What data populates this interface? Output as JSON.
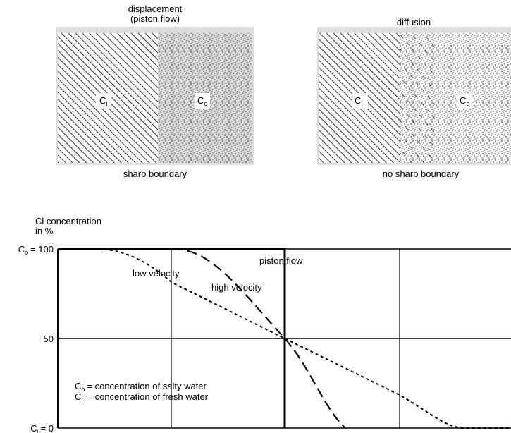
{
  "panels": [
    {
      "title_lines": [
        "displacement",
        "(piston flow)"
      ],
      "left_symbol": "C",
      "left_sub": "i",
      "right_symbol": "C",
      "right_sub": "o",
      "caption": "sharp boundary"
    },
    {
      "title_lines": [
        "diffusion"
      ],
      "left_symbol": "C",
      "left_sub": "i",
      "right_symbol": "C",
      "right_sub": "o",
      "caption": "no sharp boundary"
    }
  ],
  "chart": {
    "y_label_lines": [
      "Cl concentration",
      "in %"
    ],
    "ylim": [
      0,
      100
    ],
    "yticks": [
      {
        "value": 100,
        "symbol": "C",
        "sub": "o",
        "label": "= 100"
      },
      {
        "value": 50,
        "label": "50"
      },
      {
        "value": 0,
        "symbol": "C",
        "sub": "i",
        "label": "= 0"
      }
    ],
    "curve_labels": {
      "piston": "piston flow",
      "low": "low velocity",
      "high": "high velocity"
    },
    "legend": [
      {
        "symbol": "C",
        "sub": "o",
        "text": "= concentration of salty water"
      },
      {
        "symbol": "C",
        "sub": "i",
        "text": "= concentration of fresh water"
      }
    ]
  }
}
